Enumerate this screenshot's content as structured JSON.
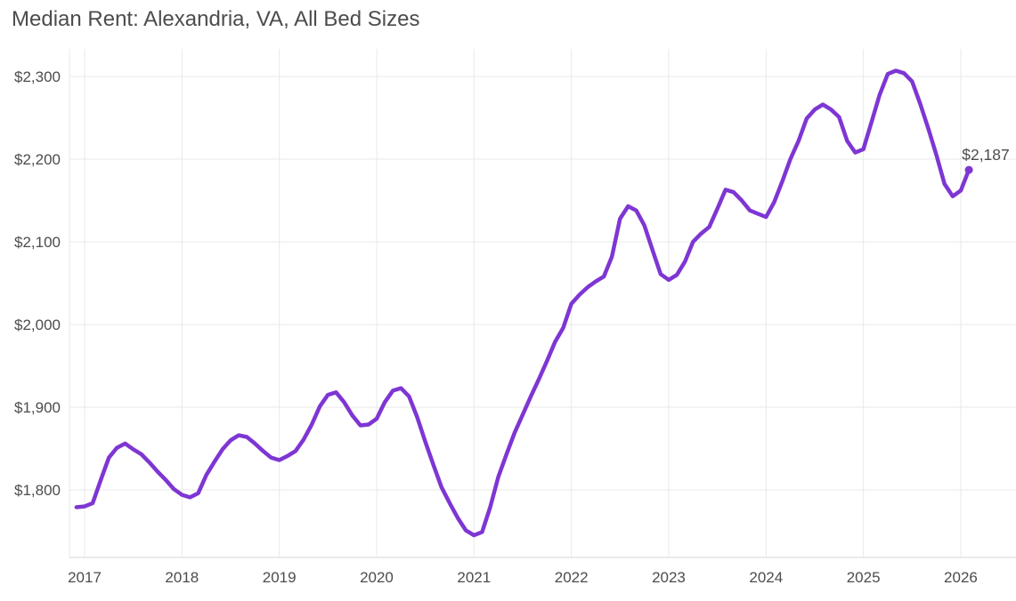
{
  "chart": {
    "title": "Median Rent: Alexandria, VA, All Bed Sizes"
  },
  "chart_data": {
    "type": "line",
    "title": "Median Rent: Alexandria, VA, All Bed Sizes",
    "xlabel": "",
    "ylabel": "",
    "grid": true,
    "legend": false,
    "ylim": [
      1718,
      2333
    ],
    "y_ticks": [
      1800,
      1900,
      2000,
      2100,
      2200,
      2300
    ],
    "y_tick_labels": [
      "$1,800",
      "$1,900",
      "$2,000",
      "$2,100",
      "$2,200",
      "$2,300"
    ],
    "x_ticks": [
      2017,
      2018,
      2019,
      2020,
      2021,
      2022,
      2023,
      2024,
      2025,
      2026
    ],
    "x_tick_labels": [
      "2017",
      "2018",
      "2019",
      "2020",
      "2021",
      "2022",
      "2023",
      "2024",
      "2025",
      "2026"
    ],
    "line_color": "#7E36D3",
    "grid_color": "#e9e9e9",
    "axis_line_color": "#d6d6d6",
    "text_color": "#4c4c4c",
    "end_annotation": {
      "text": "$2,187",
      "x": "2026-02",
      "y": 2187
    },
    "series": [
      {
        "name": "Median Rent (All Bed Sizes)",
        "color": "#7E36D3",
        "x": [
          "2016-12",
          "2017-01",
          "2017-02",
          "2017-03",
          "2017-04",
          "2017-05",
          "2017-06",
          "2017-07",
          "2017-08",
          "2017-09",
          "2017-10",
          "2017-11",
          "2017-12",
          "2018-01",
          "2018-02",
          "2018-03",
          "2018-04",
          "2018-05",
          "2018-06",
          "2018-07",
          "2018-08",
          "2018-09",
          "2018-10",
          "2018-11",
          "2018-12",
          "2019-01",
          "2019-02",
          "2019-03",
          "2019-04",
          "2019-05",
          "2019-06",
          "2019-07",
          "2019-08",
          "2019-09",
          "2019-10",
          "2019-11",
          "2019-12",
          "2020-01",
          "2020-02",
          "2020-03",
          "2020-04",
          "2020-05",
          "2020-06",
          "2020-07",
          "2020-08",
          "2020-09",
          "2020-10",
          "2020-11",
          "2020-12",
          "2021-01",
          "2021-02",
          "2021-03",
          "2021-04",
          "2021-05",
          "2021-06",
          "2021-07",
          "2021-08",
          "2021-09",
          "2021-10",
          "2021-11",
          "2021-12",
          "2022-01",
          "2022-02",
          "2022-03",
          "2022-04",
          "2022-05",
          "2022-06",
          "2022-07",
          "2022-08",
          "2022-09",
          "2022-10",
          "2022-11",
          "2022-12",
          "2023-01",
          "2023-02",
          "2023-03",
          "2023-04",
          "2023-05",
          "2023-06",
          "2023-07",
          "2023-08",
          "2023-09",
          "2023-10",
          "2023-11",
          "2023-12",
          "2024-01",
          "2024-02",
          "2024-03",
          "2024-04",
          "2024-05",
          "2024-06",
          "2024-07",
          "2024-08",
          "2024-09",
          "2024-10",
          "2024-11",
          "2024-12",
          "2025-01",
          "2025-02",
          "2025-03",
          "2025-04",
          "2025-05",
          "2025-06",
          "2025-07",
          "2025-08",
          "2025-09",
          "2025-10",
          "2025-11",
          "2025-12",
          "2026-01",
          "2026-02"
        ],
        "values": [
          1779,
          1780,
          1784,
          1812,
          1839,
          1851,
          1856,
          1849,
          1843,
          1833,
          1822,
          1812,
          1801,
          1794,
          1791,
          1796,
          1818,
          1834,
          1849,
          1860,
          1866,
          1864,
          1856,
          1847,
          1839,
          1836,
          1841,
          1847,
          1861,
          1879,
          1901,
          1915,
          1918,
          1906,
          1890,
          1878,
          1879,
          1886,
          1906,
          1920,
          1923,
          1913,
          1888,
          1858,
          1830,
          1803,
          1784,
          1766,
          1751,
          1745,
          1749,
          1779,
          1816,
          1843,
          1869,
          1891,
          1913,
          1934,
          1956,
          1979,
          1996,
          2025,
          2036,
          2045,
          2052,
          2058,
          2082,
          2128,
          2143,
          2138,
          2120,
          2090,
          2061,
          2054,
          2060,
          2076,
          2100,
          2110,
          2118,
          2140,
          2163,
          2160,
          2150,
          2138,
          2134,
          2130,
          2148,
          2173,
          2200,
          2222,
          2249,
          2260,
          2266,
          2260,
          2251,
          2222,
          2208,
          2212,
          2245,
          2278,
          2303,
          2307,
          2304,
          2294,
          2267,
          2237,
          2205,
          2170,
          2155,
          2162,
          2187
        ]
      }
    ]
  }
}
